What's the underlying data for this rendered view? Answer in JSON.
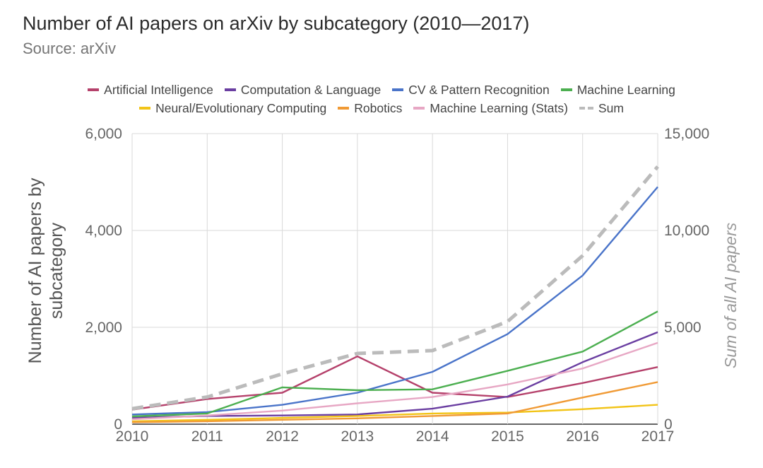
{
  "chart_data": {
    "type": "line",
    "title": "Number of AI papers on arXiv by subcategory (2010—2017)",
    "subtitle": "Source: arXiv",
    "ylabel": "Number of AI papers by subcategory",
    "y2label": "Sum of all AI papers",
    "ylim": [
      0,
      6000
    ],
    "y2lim": [
      0,
      15000
    ],
    "yticks": [
      "6,000",
      "4,000",
      "2,000",
      "0"
    ],
    "y2ticks": [
      "15,000",
      "10,000",
      "5,000",
      "0"
    ],
    "categories": [
      "2010",
      "2011",
      "2012",
      "2013",
      "2014",
      "2015",
      "2016",
      "2017"
    ],
    "series": [
      {
        "name": "Artificial Intelligence",
        "color": "#b5416b",
        "axis": "left",
        "values": [
          300,
          520,
          650,
          1400,
          650,
          560,
          850,
          1180
        ]
      },
      {
        "name": "Computation & Language",
        "color": "#6a3ea1",
        "axis": "left",
        "values": [
          130,
          170,
          180,
          200,
          320,
          570,
          1280,
          1900
        ]
      },
      {
        "name": "CV & Pattern Recognition",
        "color": "#4a74c9",
        "axis": "left",
        "values": [
          200,
          250,
          400,
          650,
          1080,
          1860,
          3070,
          4900
        ]
      },
      {
        "name": "Machine Learning",
        "color": "#4caf50",
        "axis": "left",
        "values": [
          160,
          220,
          760,
          700,
          720,
          1100,
          1500,
          2330
        ]
      },
      {
        "name": "Neural/Evolutionary Computing",
        "color": "#f2c418",
        "axis": "left",
        "values": [
          60,
          90,
          130,
          170,
          220,
          240,
          310,
          400
        ]
      },
      {
        "name": "Robotics",
        "color": "#f09a35",
        "axis": "left",
        "values": [
          40,
          60,
          90,
          120,
          170,
          220,
          550,
          870
        ]
      },
      {
        "name": "Machine Learning (Stats)",
        "color": "#e7a7c4",
        "axis": "left",
        "values": [
          100,
          180,
          280,
          430,
          560,
          820,
          1150,
          1680
        ]
      },
      {
        "name": "Sum",
        "color": "#bbbbbb",
        "axis": "right",
        "dashed": true,
        "values": [
          800,
          1400,
          2600,
          3650,
          3800,
          5300,
          8700,
          13300
        ]
      }
    ]
  }
}
